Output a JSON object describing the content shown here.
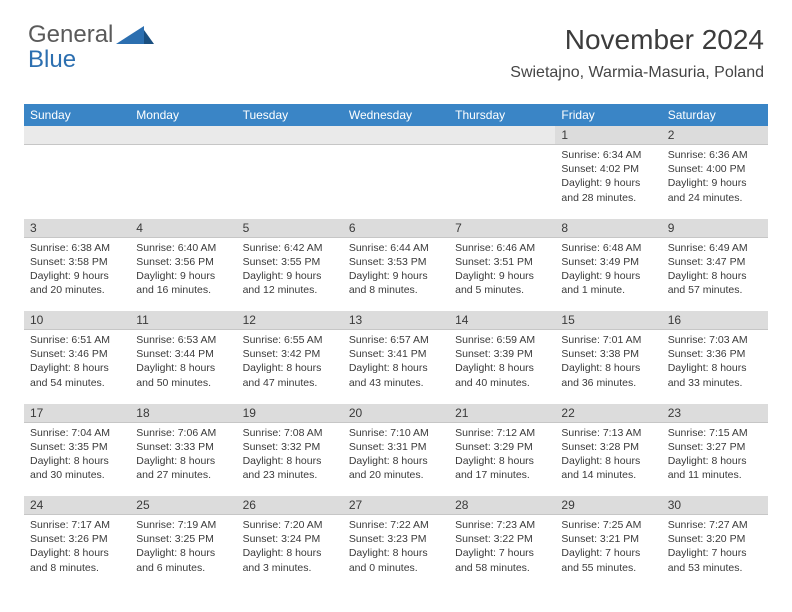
{
  "logo": {
    "word1": "General",
    "word2": "Blue"
  },
  "header": {
    "title": "November 2024",
    "location": "Swietajno, Warmia-Masuria, Poland"
  },
  "colors": {
    "header_bg": "#3a85c6",
    "header_text": "#ffffff",
    "daynum_bg": "#dcdcdc",
    "text": "#3a3a3a",
    "logo_gray": "#5a5a5a",
    "logo_blue": "#2c6fb0"
  },
  "weekdays": [
    "Sunday",
    "Monday",
    "Tuesday",
    "Wednesday",
    "Thursday",
    "Friday",
    "Saturday"
  ],
  "weeks": [
    [
      null,
      null,
      null,
      null,
      null,
      {
        "n": "1",
        "sr": "6:34 AM",
        "ss": "4:02 PM",
        "dl": "9 hours and 28 minutes."
      },
      {
        "n": "2",
        "sr": "6:36 AM",
        "ss": "4:00 PM",
        "dl": "9 hours and 24 minutes."
      }
    ],
    [
      {
        "n": "3",
        "sr": "6:38 AM",
        "ss": "3:58 PM",
        "dl": "9 hours and 20 minutes."
      },
      {
        "n": "4",
        "sr": "6:40 AM",
        "ss": "3:56 PM",
        "dl": "9 hours and 16 minutes."
      },
      {
        "n": "5",
        "sr": "6:42 AM",
        "ss": "3:55 PM",
        "dl": "9 hours and 12 minutes."
      },
      {
        "n": "6",
        "sr": "6:44 AM",
        "ss": "3:53 PM",
        "dl": "9 hours and 8 minutes."
      },
      {
        "n": "7",
        "sr": "6:46 AM",
        "ss": "3:51 PM",
        "dl": "9 hours and 5 minutes."
      },
      {
        "n": "8",
        "sr": "6:48 AM",
        "ss": "3:49 PM",
        "dl": "9 hours and 1 minute."
      },
      {
        "n": "9",
        "sr": "6:49 AM",
        "ss": "3:47 PM",
        "dl": "8 hours and 57 minutes."
      }
    ],
    [
      {
        "n": "10",
        "sr": "6:51 AM",
        "ss": "3:46 PM",
        "dl": "8 hours and 54 minutes."
      },
      {
        "n": "11",
        "sr": "6:53 AM",
        "ss": "3:44 PM",
        "dl": "8 hours and 50 minutes."
      },
      {
        "n": "12",
        "sr": "6:55 AM",
        "ss": "3:42 PM",
        "dl": "8 hours and 47 minutes."
      },
      {
        "n": "13",
        "sr": "6:57 AM",
        "ss": "3:41 PM",
        "dl": "8 hours and 43 minutes."
      },
      {
        "n": "14",
        "sr": "6:59 AM",
        "ss": "3:39 PM",
        "dl": "8 hours and 40 minutes."
      },
      {
        "n": "15",
        "sr": "7:01 AM",
        "ss": "3:38 PM",
        "dl": "8 hours and 36 minutes."
      },
      {
        "n": "16",
        "sr": "7:03 AM",
        "ss": "3:36 PM",
        "dl": "8 hours and 33 minutes."
      }
    ],
    [
      {
        "n": "17",
        "sr": "7:04 AM",
        "ss": "3:35 PM",
        "dl": "8 hours and 30 minutes."
      },
      {
        "n": "18",
        "sr": "7:06 AM",
        "ss": "3:33 PM",
        "dl": "8 hours and 27 minutes."
      },
      {
        "n": "19",
        "sr": "7:08 AM",
        "ss": "3:32 PM",
        "dl": "8 hours and 23 minutes."
      },
      {
        "n": "20",
        "sr": "7:10 AM",
        "ss": "3:31 PM",
        "dl": "8 hours and 20 minutes."
      },
      {
        "n": "21",
        "sr": "7:12 AM",
        "ss": "3:29 PM",
        "dl": "8 hours and 17 minutes."
      },
      {
        "n": "22",
        "sr": "7:13 AM",
        "ss": "3:28 PM",
        "dl": "8 hours and 14 minutes."
      },
      {
        "n": "23",
        "sr": "7:15 AM",
        "ss": "3:27 PM",
        "dl": "8 hours and 11 minutes."
      }
    ],
    [
      {
        "n": "24",
        "sr": "7:17 AM",
        "ss": "3:26 PM",
        "dl": "8 hours and 8 minutes."
      },
      {
        "n": "25",
        "sr": "7:19 AM",
        "ss": "3:25 PM",
        "dl": "8 hours and 6 minutes."
      },
      {
        "n": "26",
        "sr": "7:20 AM",
        "ss": "3:24 PM",
        "dl": "8 hours and 3 minutes."
      },
      {
        "n": "27",
        "sr": "7:22 AM",
        "ss": "3:23 PM",
        "dl": "8 hours and 0 minutes."
      },
      {
        "n": "28",
        "sr": "7:23 AM",
        "ss": "3:22 PM",
        "dl": "7 hours and 58 minutes."
      },
      {
        "n": "29",
        "sr": "7:25 AM",
        "ss": "3:21 PM",
        "dl": "7 hours and 55 minutes."
      },
      {
        "n": "30",
        "sr": "7:27 AM",
        "ss": "3:20 PM",
        "dl": "7 hours and 53 minutes."
      }
    ]
  ],
  "labels": {
    "sunrise": "Sunrise:",
    "sunset": "Sunset:",
    "daylight": "Daylight:"
  }
}
